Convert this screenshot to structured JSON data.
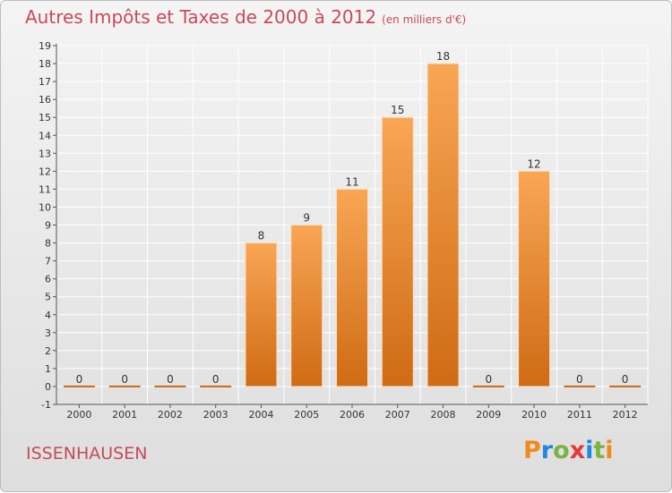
{
  "header": {
    "title": "Autres Impôts et Taxes de 2000 à 2012",
    "unit": "(en milliers d'€)"
  },
  "commune": "ISSENHAUSEN",
  "logo": {
    "text": "Proxiti",
    "letters": [
      {
        "ch": "P",
        "color": "#f08a1c"
      },
      {
        "ch": "r",
        "color": "#1e88e5"
      },
      {
        "ch": "o",
        "color": "#7cb342"
      },
      {
        "ch": "x",
        "color": "#e53935"
      },
      {
        "ch": "i",
        "color": "#1e88e5"
      },
      {
        "ch": "t",
        "color": "#7cb342"
      },
      {
        "ch": "i",
        "color": "#f08a1c"
      }
    ]
  },
  "chart_data": {
    "type": "bar",
    "categories": [
      "2000",
      "2001",
      "2002",
      "2003",
      "2004",
      "2005",
      "2006",
      "2007",
      "2008",
      "2009",
      "2010",
      "2011",
      "2012"
    ],
    "values": [
      0,
      0,
      0,
      0,
      8,
      9,
      11,
      15,
      18,
      0,
      12,
      0,
      0
    ],
    "data_labels": [
      "0",
      "0",
      "0",
      "0",
      "8",
      "9",
      "11",
      "15",
      "18",
      "0",
      "12",
      "0",
      "0"
    ],
    "ylim": [
      -1,
      19
    ],
    "yticks": [
      -1,
      0,
      1,
      2,
      3,
      4,
      5,
      6,
      7,
      8,
      9,
      10,
      11,
      12,
      13,
      14,
      15,
      16,
      17,
      18,
      19
    ],
    "grid": true,
    "colors": {
      "bar_top": "#f9a655",
      "bar_bottom": "#cf6b14",
      "grid": "#ffffff",
      "text": "#333333"
    }
  }
}
